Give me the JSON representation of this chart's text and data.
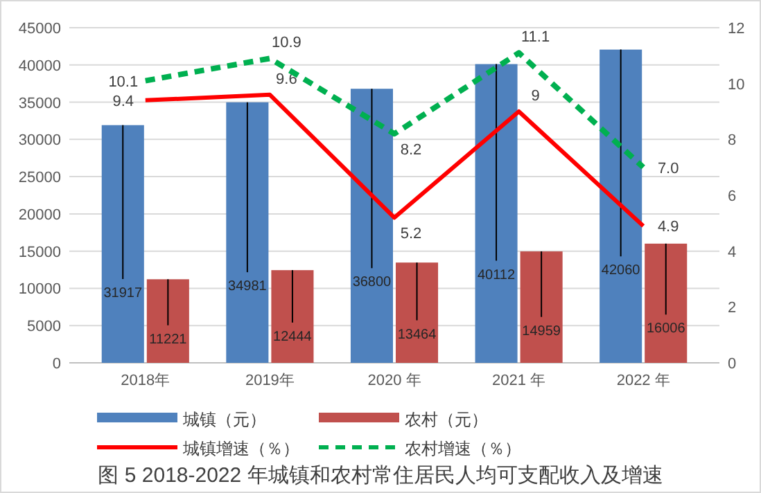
{
  "chart_data": {
    "type": "bar",
    "title": "图 5 2018-2022 年城镇和农村常住居民人均可支配收入及增速",
    "categories": [
      "2018年",
      "2019年",
      "2020 年",
      "2021 年",
      "2022 年"
    ],
    "series": [
      {
        "name": "城镇（元）",
        "color": "#4f81bd",
        "values": [
          31917,
          34981,
          36800,
          40112,
          42060
        ]
      },
      {
        "name": "农村（元）",
        "color": "#c0504d",
        "values": [
          11221,
          12444,
          13464,
          14959,
          16006
        ]
      },
      {
        "name": "城镇增速（％）",
        "type": "line",
        "axis": "y2",
        "color": "#ff0000",
        "line_style": "solid",
        "values": [
          9.4,
          9.6,
          5.2,
          9,
          4.9
        ],
        "value_labels": [
          "9.4",
          "9.6",
          "5.2",
          "9",
          "4.9"
        ]
      },
      {
        "name": "农村增速（％）",
        "type": "line",
        "axis": "y2",
        "color": "#00b050",
        "line_style": "dashed",
        "values": [
          10.1,
          10.9,
          8.2,
          11.1,
          7.0
        ],
        "value_labels": [
          "10.1",
          "10.9",
          "8.2",
          "11.1",
          "7.0"
        ]
      }
    ],
    "data_labels": true,
    "ylim": [
      0,
      45000
    ],
    "yticks": [
      0,
      5000,
      10000,
      15000,
      20000,
      25000,
      30000,
      35000,
      40000,
      45000
    ],
    "y2lim": [
      0,
      12
    ],
    "y2ticks": [
      0,
      2,
      4,
      6,
      8,
      10,
      12
    ],
    "grid": "y",
    "legend": "bottom"
  }
}
